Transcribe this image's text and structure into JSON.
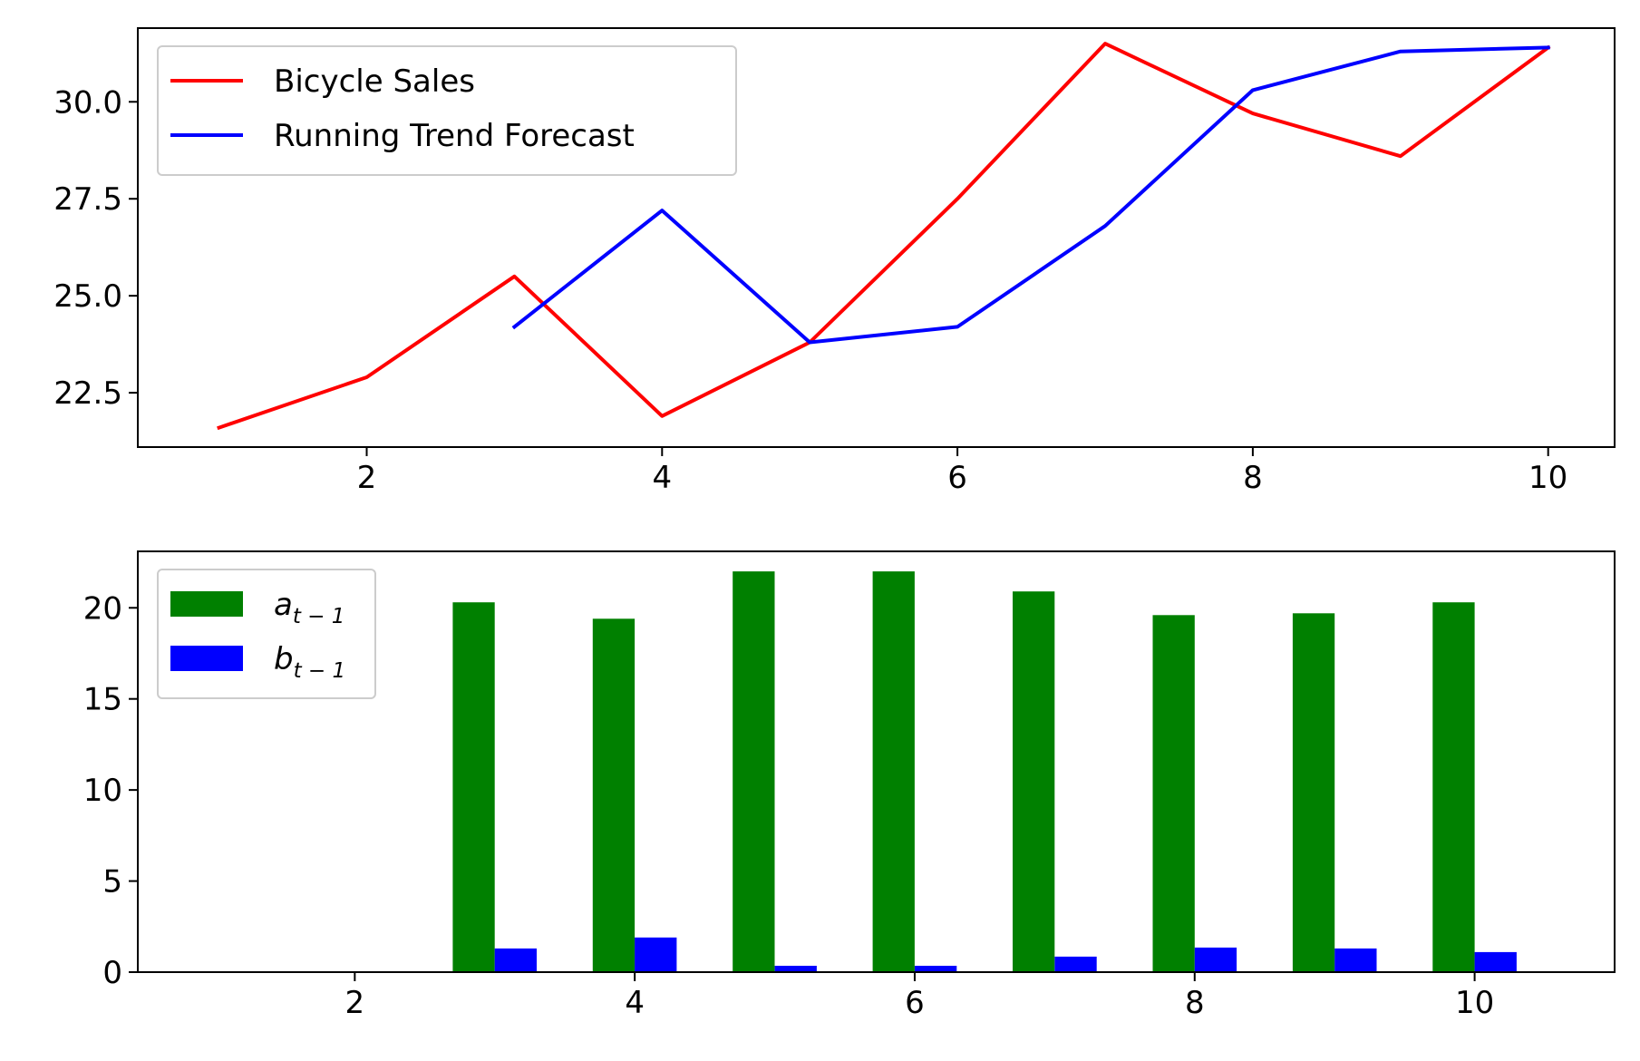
{
  "chart_data": [
    {
      "type": "line",
      "title": "",
      "xlabel": "",
      "ylabel": "",
      "xlim": [
        0.45,
        10.45
      ],
      "ylim": [
        21.1,
        31.9
      ],
      "xticks": [
        2,
        4,
        6,
        8,
        10
      ],
      "yticks": [
        22.5,
        25.0,
        27.5,
        30.0
      ],
      "xtick_labels": [
        "2",
        "4",
        "6",
        "8",
        "10"
      ],
      "ytick_labels": [
        "22.5",
        "25.0",
        "27.5",
        "30.0"
      ],
      "grid": false,
      "legend": "upper left",
      "series": [
        {
          "name": "Bicycle Sales",
          "color": "#ff0000",
          "x": [
            1,
            2,
            3,
            4,
            5,
            6,
            7,
            8,
            9,
            10
          ],
          "y": [
            21.6,
            22.9,
            25.5,
            21.9,
            23.8,
            27.5,
            31.5,
            29.7,
            28.6,
            31.4
          ]
        },
        {
          "name": "Running Trend Forecast",
          "color": "#0000ff",
          "x": [
            3,
            4,
            5,
            6,
            7,
            8,
            9,
            10
          ],
          "y": [
            24.2,
            27.2,
            23.8,
            24.2,
            26.8,
            30.3,
            31.3,
            31.4
          ]
        }
      ]
    },
    {
      "type": "bar",
      "title": "",
      "xlabel": "",
      "ylabel": "",
      "xlim": [
        0.45,
        11.0
      ],
      "ylim": [
        0,
        23.1
      ],
      "xticks": [
        2,
        4,
        6,
        8,
        10
      ],
      "yticks": [
        0,
        5,
        10,
        15,
        20
      ],
      "xtick_labels": [
        "2",
        "4",
        "6",
        "8",
        "10"
      ],
      "ytick_labels": [
        "0",
        "5",
        "10",
        "15",
        "20"
      ],
      "grid": false,
      "legend": "upper left",
      "bar_width": 0.3,
      "series": [
        {
          "name": "a",
          "name_sub": "t − 1",
          "color": "#008000",
          "x": [
            3,
            4,
            5,
            6,
            7,
            8,
            9,
            10
          ],
          "values": [
            20.3,
            19.4,
            22.0,
            22.0,
            20.9,
            19.6,
            19.7,
            20.3
          ]
        },
        {
          "name": "b",
          "name_sub": "t − 1",
          "color": "#0000ff",
          "x": [
            3,
            4,
            5,
            6,
            7,
            8,
            9,
            10
          ],
          "values": [
            1.3,
            1.9,
            0.35,
            0.35,
            0.85,
            1.35,
            1.3,
            1.1
          ]
        }
      ]
    }
  ]
}
